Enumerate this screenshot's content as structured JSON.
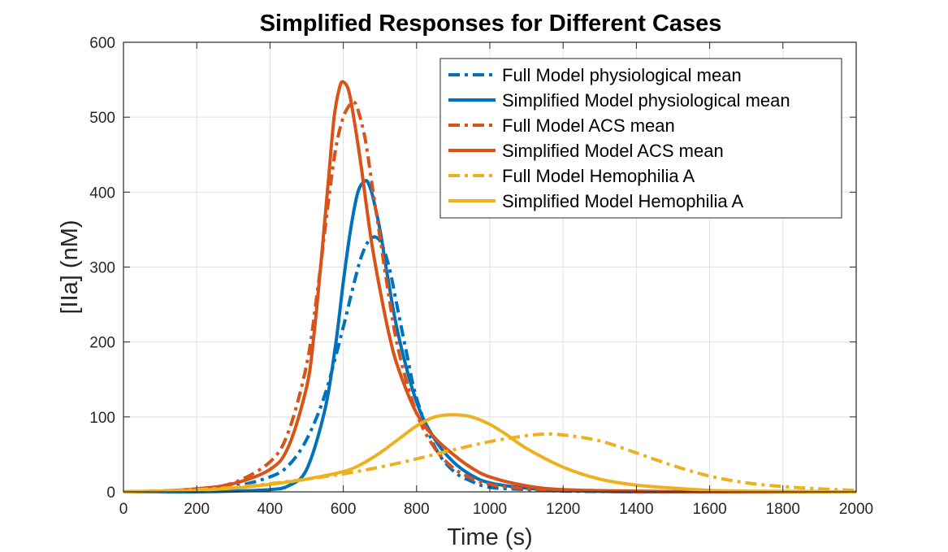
{
  "chart_data": {
    "type": "line",
    "title": "Simplified Responses for Different Cases",
    "xlabel": "Time (s)",
    "ylabel": "[IIa] (nM)",
    "xlim": [
      0,
      2000
    ],
    "ylim": [
      0,
      600
    ],
    "xticks": [
      "0",
      "200",
      "400",
      "600",
      "800",
      "1000",
      "1200",
      "1400",
      "1600",
      "1800",
      "2000"
    ],
    "yticks": [
      "0",
      "100",
      "200",
      "300",
      "400",
      "500",
      "600"
    ],
    "grid": true,
    "legend_position": "top-right",
    "series": [
      {
        "name": "Full Model physiological mean",
        "color": "#0072BD",
        "style": "dashdot",
        "x": [
          0,
          100,
          200,
          300,
          400,
          450,
          500,
          550,
          600,
          625,
          650,
          675,
          700,
          725,
          750,
          775,
          800,
          850,
          900,
          950,
          1000,
          1100,
          1200,
          1400,
          1600,
          2000
        ],
        "y": [
          0,
          1,
          3,
          7,
          20,
          35,
          70,
          130,
          220,
          270,
          315,
          338,
          335,
          300,
          240,
          180,
          125,
          60,
          28,
          14,
          6,
          3,
          1,
          0,
          0,
          0
        ]
      },
      {
        "name": "Simplified Model physiological mean",
        "color": "#0072BD",
        "style": "solid",
        "x": [
          0,
          100,
          200,
          300,
          400,
          450,
          500,
          550,
          580,
          600,
          620,
          640,
          660,
          670,
          680,
          700,
          720,
          750,
          800,
          850,
          900,
          950,
          1000,
          1100,
          1200,
          1400,
          1600,
          2000
        ],
        "y": [
          0,
          0,
          0,
          1,
          3,
          8,
          30,
          110,
          200,
          280,
          350,
          400,
          415,
          410,
          395,
          350,
          290,
          210,
          120,
          70,
          40,
          22,
          12,
          5,
          2,
          0,
          0,
          0
        ]
      },
      {
        "name": "Full Model ACS mean",
        "color": "#D95319",
        "style": "dashdot",
        "x": [
          0,
          100,
          200,
          300,
          400,
          450,
          500,
          530,
          560,
          580,
          600,
          620,
          630,
          640,
          660,
          680,
          700,
          720,
          750,
          800,
          850,
          900,
          950,
          1000,
          1100,
          1200,
          1400,
          1600,
          2000
        ],
        "y": [
          0,
          1,
          4,
          12,
          40,
          80,
          170,
          270,
          390,
          460,
          500,
          518,
          520,
          510,
          470,
          405,
          340,
          275,
          190,
          105,
          58,
          32,
          18,
          10,
          4,
          2,
          0,
          0,
          0
        ]
      },
      {
        "name": "Simplified Model ACS mean",
        "color": "#D95319",
        "style": "solid",
        "x": [
          0,
          100,
          200,
          300,
          400,
          450,
          500,
          520,
          540,
          560,
          575,
          590,
          600,
          615,
          630,
          650,
          675,
          700,
          725,
          750,
          800,
          850,
          900,
          950,
          1000,
          1100,
          1200,
          1400,
          1600,
          2000
        ],
        "y": [
          0,
          1,
          4,
          11,
          30,
          60,
          140,
          210,
          310,
          420,
          500,
          540,
          547,
          535,
          495,
          430,
          340,
          270,
          210,
          165,
          105,
          72,
          50,
          32,
          20,
          8,
          3,
          1,
          0,
          0
        ]
      },
      {
        "name": "Full Model Hemophilia A",
        "color": "#EDB120",
        "style": "dashdot",
        "x": [
          0,
          100,
          200,
          300,
          400,
          500,
          600,
          700,
          800,
          900,
          1000,
          1100,
          1150,
          1200,
          1300,
          1400,
          1500,
          1600,
          1700,
          1800,
          1900,
          2000
        ],
        "y": [
          0,
          1,
          3,
          6,
          11,
          17,
          24,
          33,
          44,
          56,
          67,
          75,
          77,
          76,
          68,
          52,
          35,
          21,
          12,
          7,
          4,
          2
        ]
      },
      {
        "name": "Simplified Model Hemophilia A",
        "color": "#EDB120",
        "style": "solid",
        "x": [
          0,
          100,
          200,
          300,
          400,
          500,
          600,
          650,
          700,
          750,
          800,
          850,
          900,
          950,
          1000,
          1050,
          1100,
          1200,
          1300,
          1400,
          1500,
          1600,
          1700,
          2000
        ],
        "y": [
          0,
          1,
          2,
          5,
          10,
          17,
          27,
          37,
          52,
          70,
          88,
          100,
          103,
          100,
          90,
          75,
          58,
          33,
          17,
          9,
          5,
          2,
          1,
          0
        ]
      }
    ]
  }
}
